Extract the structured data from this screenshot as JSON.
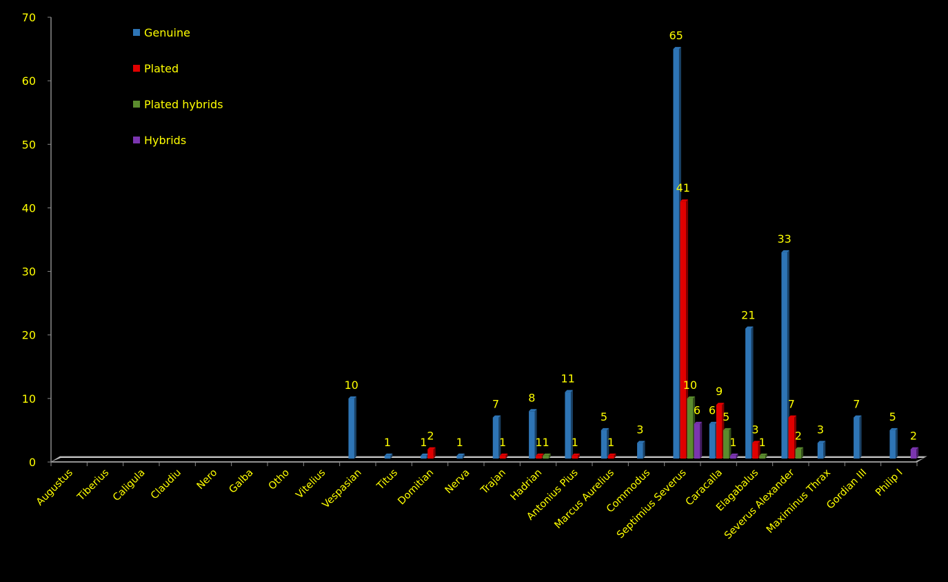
{
  "chart_data": {
    "type": "bar",
    "title": "",
    "xlabel": "",
    "ylabel": "",
    "ylim": [
      0,
      70
    ],
    "yticks": [
      0,
      10,
      20,
      30,
      40,
      50,
      60,
      70
    ],
    "grid": false,
    "legend_position": "top-left",
    "text_color": "#FFFF00",
    "background_color": "#000000",
    "categories": [
      "Augustus",
      "Tiberius",
      "Caligula",
      "Claudiu",
      "Nero",
      "Galba",
      "Otho",
      "Vitelius",
      "Vespasian",
      "Titus",
      "Domitian",
      "Nerva",
      "Trajan",
      "Hadrian",
      "Antonius Pius",
      "Marcus Aurelius",
      "Commodus",
      "Septimius Severus",
      "Caracalla",
      "Elagabalus",
      "Severus Alexander",
      "Maximinus Thrax",
      "Gordian III",
      "Philip I"
    ],
    "series": [
      {
        "name": "Genuine",
        "color": "#2E75B6",
        "values": [
          0,
          0,
          0,
          0,
          0,
          0,
          0,
          0,
          10,
          1,
          1,
          1,
          7,
          8,
          11,
          5,
          3,
          65,
          6,
          21,
          33,
          3,
          7,
          5
        ]
      },
      {
        "name": "Plated",
        "color": "#E00000",
        "values": [
          0,
          0,
          0,
          0,
          0,
          0,
          0,
          0,
          0,
          0,
          2,
          0,
          1,
          1,
          1,
          1,
          0,
          41,
          9,
          3,
          7,
          0,
          0,
          0
        ]
      },
      {
        "name": "Plated hybrids",
        "color": "#5B8C2E",
        "values": [
          0,
          0,
          0,
          0,
          0,
          0,
          0,
          0,
          0,
          0,
          0,
          0,
          0,
          1,
          0,
          0,
          0,
          10,
          5,
          1,
          2,
          0,
          0,
          0
        ]
      },
      {
        "name": "Hybrids",
        "color": "#7B35B0",
        "values": [
          0,
          0,
          0,
          0,
          0,
          0,
          0,
          0,
          0,
          0,
          0,
          0,
          0,
          0,
          0,
          0,
          0,
          6,
          1,
          0,
          0,
          0,
          0,
          2
        ]
      }
    ]
  }
}
